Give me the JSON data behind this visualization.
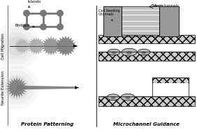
{
  "title_protein": "Protein Patterning",
  "title_micro": "Microchannel Guidance",
  "label_islands": "Islands",
  "label_bridges": "Bridges",
  "label_cell_seeding": "Cell Seeding\nChannels",
  "label_microchannels": "Microchannels",
  "label_cell_migration": "Cell Migration",
  "label_neurite": "Neurite Extension",
  "gray_dark": "#777777",
  "gray_med": "#999999",
  "gray_light": "#bbbbbb",
  "gray_lighter": "#cccccc",
  "gray_node": "#888888",
  "white": "#ffffff",
  "black": "#000000"
}
